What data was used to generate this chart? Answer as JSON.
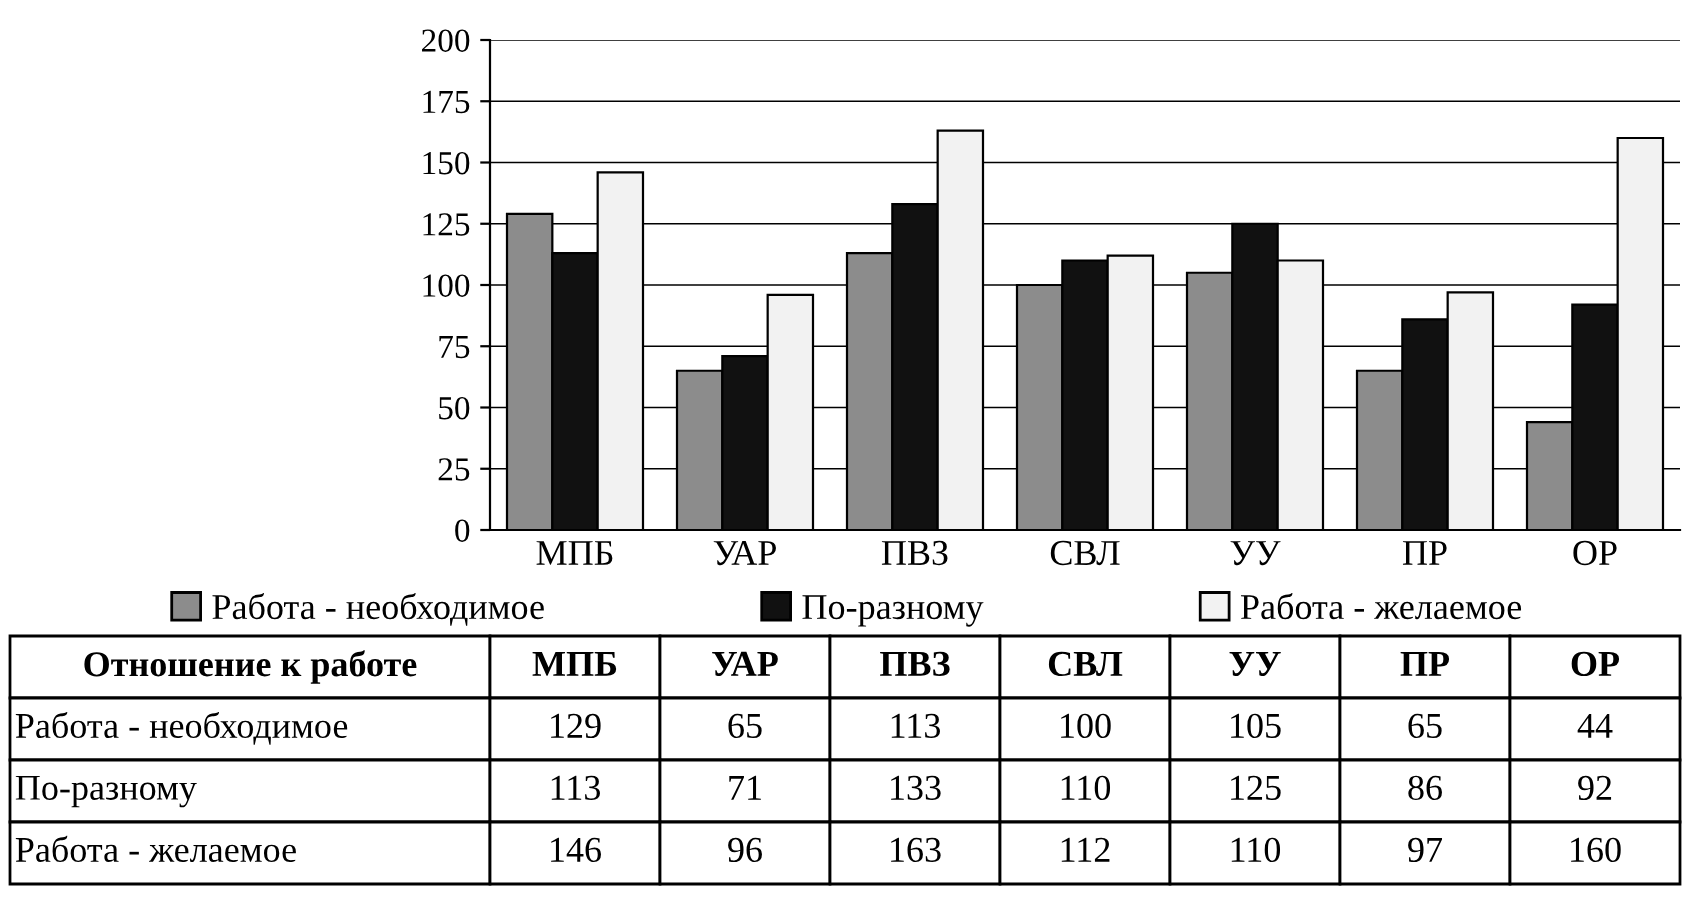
{
  "chart_data": {
    "type": "bar",
    "categories": [
      "МПБ",
      "УАР",
      "ПВЗ",
      "СВЛ",
      "УУ",
      "ПР",
      "ОР"
    ],
    "series": [
      {
        "name": "Работа - необходимое",
        "color": "#8c8c8c",
        "values": [
          129,
          65,
          113,
          100,
          105,
          65,
          44
        ]
      },
      {
        "name": "По-разному",
        "color": "#111111",
        "values": [
          113,
          71,
          133,
          110,
          125,
          86,
          92
        ]
      },
      {
        "name": "Работа - желаемое",
        "color": "#f2f2f2",
        "values": [
          146,
          96,
          163,
          112,
          110,
          97,
          160
        ]
      }
    ],
    "ylim": [
      0,
      200
    ],
    "yticks": [
      0,
      25,
      50,
      75,
      100,
      125,
      150,
      175,
      200
    ],
    "grid": "y",
    "legend": "bottom",
    "data_labels": true,
    "annotations": [
      "Отношение к работе"
    ]
  }
}
